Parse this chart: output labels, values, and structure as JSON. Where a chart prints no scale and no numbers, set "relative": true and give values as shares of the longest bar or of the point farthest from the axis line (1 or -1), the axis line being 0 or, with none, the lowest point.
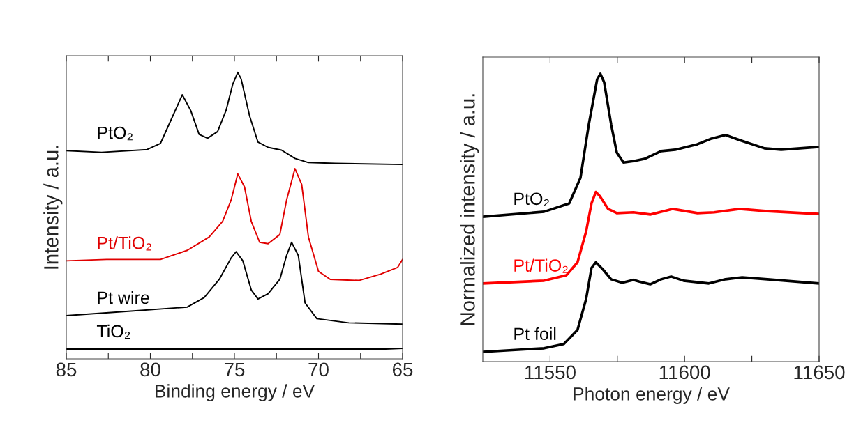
{
  "chart_data": [
    {
      "type": "line",
      "xlabel": "Binding energy / eV",
      "ylabel": "Intensity / a.u.",
      "relative": true,
      "xlim": [
        85,
        65
      ],
      "xticks": [
        85,
        {
          "value": 82.5,
          "label": null
        },
        80,
        {
          "value": 77.5,
          "label": null
        },
        75,
        {
          "value": 72.5,
          "label": null
        },
        70,
        {
          "value": 67.5,
          "label": null
        },
        65
      ],
      "series": [
        {
          "name": "PtO₂",
          "color": "#000000",
          "x": [
            85,
            82.9,
            80.2,
            79.4,
            78.8,
            78.1,
            77.6,
            77.1,
            76.6,
            76.0,
            75.5,
            75.1,
            74.8,
            74.6,
            74.1,
            73.6,
            73.0,
            72.2,
            71.4,
            70.6,
            69.0,
            65.0
          ],
          "values": [
            0.717,
            0.711,
            0.721,
            0.743,
            0.824,
            0.919,
            0.862,
            0.776,
            0.762,
            0.786,
            0.862,
            0.957,
            1.0,
            0.976,
            0.843,
            0.748,
            0.729,
            0.719,
            0.689,
            0.674,
            0.671,
            0.667
          ]
        },
        {
          "name": "Pt/TiO₂",
          "color": "#e00000",
          "x": [
            85,
            82.6,
            79.4,
            77.8,
            76.5,
            75.7,
            75.2,
            74.8,
            74.4,
            74.0,
            73.5,
            73.0,
            72.3,
            71.9,
            71.4,
            71.0,
            70.6,
            70.0,
            69.3,
            67.6,
            66.3,
            65.3,
            65.0
          ],
          "values": [
            0.319,
            0.324,
            0.324,
            0.357,
            0.405,
            0.462,
            0.538,
            0.633,
            0.586,
            0.462,
            0.386,
            0.381,
            0.414,
            0.538,
            0.652,
            0.595,
            0.405,
            0.281,
            0.252,
            0.248,
            0.271,
            0.295,
            0.324
          ]
        },
        {
          "name": "Pt wire",
          "color": "#000000",
          "x": [
            85,
            81.0,
            77.8,
            76.8,
            75.9,
            75.2,
            74.9,
            74.5,
            74.0,
            73.6,
            73.0,
            72.3,
            71.9,
            71.6,
            71.2,
            70.8,
            70.1,
            68.2,
            65.0
          ],
          "values": [
            0.121,
            0.138,
            0.152,
            0.186,
            0.252,
            0.329,
            0.352,
            0.319,
            0.214,
            0.181,
            0.2,
            0.252,
            0.338,
            0.386,
            0.338,
            0.167,
            0.11,
            0.095,
            0.09
          ]
        },
        {
          "name": "TiO₂",
          "color": "#000000",
          "x": [
            85,
            75,
            66,
            65
          ],
          "values": [
            0,
            0,
            0,
            0.003
          ]
        }
      ]
    },
    {
      "type": "line",
      "xlabel": "Photon energy / eV",
      "ylabel": "Normalized intensity / a.u.",
      "relative": true,
      "xlim": [
        11525,
        11650
      ],
      "xticks": [
        11550,
        {
          "value": 11575,
          "label": null
        },
        11600,
        {
          "value": 11625,
          "label": null
        },
        11650
      ],
      "series": [
        {
          "name": "PtO₂",
          "color": "#000000",
          "x": [
            11525,
            11547.8,
            11557.1,
            11561.3,
            11564.4,
            11567.5,
            11568.7,
            11570.1,
            11572.7,
            11574.8,
            11577.3,
            11581.0,
            11585.1,
            11591.3,
            11596.5,
            11604.8,
            11610.0,
            11615.2,
            11620.4,
            11629.7,
            11635.9,
            11650
          ],
          "values": [
            0.486,
            0.504,
            0.534,
            0.626,
            0.818,
            0.98,
            1.0,
            0.97,
            0.818,
            0.717,
            0.681,
            0.686,
            0.694,
            0.722,
            0.727,
            0.747,
            0.767,
            0.78,
            0.762,
            0.732,
            0.727,
            0.737
          ]
        },
        {
          "name": "Pt/TiO₂",
          "color": "#ff0000",
          "x": [
            11525,
            11547.8,
            11556.1,
            11560.2,
            11563.4,
            11565.4,
            11567.0,
            11568.5,
            11571.6,
            11574.8,
            11581.0,
            11587.2,
            11595.5,
            11604.8,
            11611.0,
            11620.4,
            11630.8,
            11650
          ],
          "values": [
            0.246,
            0.256,
            0.276,
            0.322,
            0.433,
            0.534,
            0.575,
            0.56,
            0.514,
            0.499,
            0.502,
            0.494,
            0.514,
            0.499,
            0.502,
            0.514,
            0.506,
            0.496
          ]
        },
        {
          "name": "Pt foil",
          "color": "#000000",
          "x": [
            11525,
            11547.8,
            11555.1,
            11560.2,
            11563.4,
            11565.4,
            11567.0,
            11569.6,
            11572.7,
            11576.8,
            11581.0,
            11583.0,
            11587.2,
            11591.3,
            11595.0,
            11599.6,
            11609.0,
            11615.2,
            11621.4,
            11630.8,
            11650
          ],
          "values": [
            0.0,
            0.013,
            0.028,
            0.079,
            0.19,
            0.302,
            0.322,
            0.297,
            0.261,
            0.249,
            0.259,
            0.253,
            0.243,
            0.261,
            0.271,
            0.256,
            0.246,
            0.261,
            0.268,
            0.261,
            0.246
          ]
        }
      ]
    }
  ]
}
